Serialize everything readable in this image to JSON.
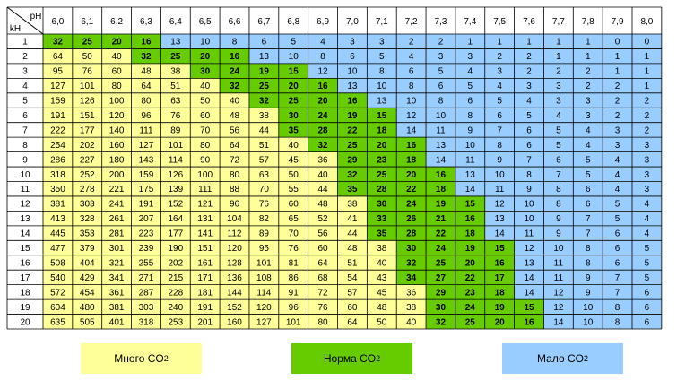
{
  "chart_data": {
    "type": "heatmap",
    "corner_labels": {
      "top": "pH",
      "bottom": "kH"
    },
    "ph_values": [
      "6,0",
      "6,1",
      "6,2",
      "6,3",
      "6,4",
      "6,5",
      "6,6",
      "6,7",
      "6,8",
      "6,9",
      "7,0",
      "7,1",
      "7,2",
      "7,3",
      "7,4",
      "7,5",
      "7,6",
      "7,7",
      "7,8",
      "7,9",
      "8,0"
    ],
    "kh_values": [
      "1",
      "2",
      "3",
      "4",
      "5",
      "6",
      "7",
      "8",
      "9",
      "10",
      "11",
      "12",
      "13",
      "14",
      "15",
      "16",
      "17",
      "18",
      "19",
      "20"
    ],
    "values": [
      [
        "32",
        "25",
        "20",
        "16",
        "13",
        "10",
        "8",
        "6",
        "5",
        "4",
        "3",
        "3",
        "2",
        "2",
        "1",
        "1",
        "1",
        "1",
        "1",
        "0",
        "0"
      ],
      [
        "64",
        "50",
        "40",
        "32",
        "25",
        "20",
        "16",
        "13",
        "10",
        "8",
        "6",
        "5",
        "4",
        "3",
        "3",
        "2",
        "2",
        "1",
        "1",
        "1",
        "1"
      ],
      [
        "95",
        "76",
        "60",
        "48",
        "38",
        "30",
        "24",
        "19",
        "15",
        "12",
        "10",
        "8",
        "6",
        "5",
        "4",
        "3",
        "2",
        "2",
        "2",
        "1",
        "1"
      ],
      [
        "127",
        "101",
        "80",
        "64",
        "51",
        "40",
        "32",
        "25",
        "20",
        "16",
        "13",
        "10",
        "8",
        "6",
        "5",
        "4",
        "3",
        "3",
        "2",
        "2",
        "1"
      ],
      [
        "159",
        "126",
        "100",
        "80",
        "63",
        "50",
        "40",
        "32",
        "25",
        "20",
        "16",
        "13",
        "10",
        "8",
        "6",
        "5",
        "4",
        "3",
        "3",
        "2",
        "2"
      ],
      [
        "191",
        "151",
        "120",
        "96",
        "76",
        "60",
        "48",
        "38",
        "30",
        "24",
        "19",
        "15",
        "12",
        "10",
        "8",
        "6",
        "5",
        "4",
        "3",
        "2",
        "2"
      ],
      [
        "222",
        "177",
        "140",
        "111",
        "89",
        "70",
        "56",
        "44",
        "35",
        "28",
        "22",
        "18",
        "14",
        "11",
        "9",
        "7",
        "6",
        "5",
        "4",
        "3",
        "2"
      ],
      [
        "254",
        "202",
        "160",
        "127",
        "101",
        "80",
        "64",
        "51",
        "40",
        "32",
        "25",
        "20",
        "16",
        "13",
        "10",
        "8",
        "6",
        "5",
        "4",
        "3",
        "3"
      ],
      [
        "286",
        "227",
        "180",
        "143",
        "114",
        "90",
        "72",
        "57",
        "45",
        "36",
        "29",
        "23",
        "18",
        "14",
        "11",
        "9",
        "7",
        "6",
        "5",
        "4",
        "3"
      ],
      [
        "318",
        "252",
        "200",
        "159",
        "126",
        "100",
        "80",
        "63",
        "50",
        "40",
        "32",
        "25",
        "20",
        "16",
        "13",
        "10",
        "8",
        "7",
        "5",
        "4",
        "3"
      ],
      [
        "350",
        "278",
        "221",
        "175",
        "139",
        "111",
        "88",
        "70",
        "55",
        "44",
        "35",
        "28",
        "22",
        "18",
        "14",
        "11",
        "9",
        "8",
        "6",
        "4",
        "3"
      ],
      [
        "381",
        "303",
        "241",
        "191",
        "152",
        "121",
        "96",
        "76",
        "60",
        "48",
        "38",
        "30",
        "24",
        "19",
        "15",
        "12",
        "10",
        "8",
        "6",
        "5",
        "4"
      ],
      [
        "413",
        "328",
        "261",
        "207",
        "164",
        "131",
        "104",
        "82",
        "65",
        "52",
        "41",
        "33",
        "26",
        "21",
        "16",
        "13",
        "10",
        "9",
        "7",
        "5",
        "4"
      ],
      [
        "445",
        "353",
        "281",
        "223",
        "177",
        "141",
        "112",
        "89",
        "70",
        "56",
        "44",
        "35",
        "28",
        "22",
        "18",
        "14",
        "11",
        "9",
        "7",
        "6",
        "4"
      ],
      [
        "477",
        "379",
        "301",
        "239",
        "190",
        "151",
        "120",
        "95",
        "76",
        "60",
        "48",
        "38",
        "30",
        "24",
        "19",
        "15",
        "12",
        "10",
        "8",
        "6",
        "5"
      ],
      [
        "508",
        "404",
        "321",
        "255",
        "202",
        "161",
        "128",
        "101",
        "81",
        "64",
        "51",
        "40",
        "32",
        "25",
        "20",
        "16",
        "13",
        "11",
        "8",
        "6",
        "5"
      ],
      [
        "540",
        "429",
        "341",
        "271",
        "215",
        "171",
        "136",
        "108",
        "86",
        "68",
        "54",
        "43",
        "34",
        "27",
        "22",
        "17",
        "14",
        "11",
        "9",
        "7",
        "5"
      ],
      [
        "572",
        "454",
        "361",
        "287",
        "228",
        "181",
        "144",
        "114",
        "91",
        "72",
        "57",
        "45",
        "36",
        "29",
        "23",
        "18",
        "14",
        "12",
        "9",
        "7",
        "6"
      ],
      [
        "604",
        "480",
        "381",
        "303",
        "240",
        "191",
        "152",
        "120",
        "96",
        "76",
        "60",
        "48",
        "38",
        "30",
        "24",
        "19",
        "15",
        "12",
        "10",
        "8",
        "6"
      ],
      [
        "635",
        "505",
        "401",
        "318",
        "253",
        "201",
        "160",
        "127",
        "101",
        "80",
        "64",
        "50",
        "40",
        "32",
        "25",
        "20",
        "16",
        "14",
        "10",
        "8",
        "6"
      ]
    ],
    "legend": [
      {
        "label": "Много CO",
        "sub": "2",
        "color": "#FFFF99"
      },
      {
        "label": "Норма CO",
        "sub": "2",
        "color": "#66CC00"
      },
      {
        "label": "Мало CO",
        "sub": "2",
        "color": "#99CCFF"
      }
    ]
  }
}
